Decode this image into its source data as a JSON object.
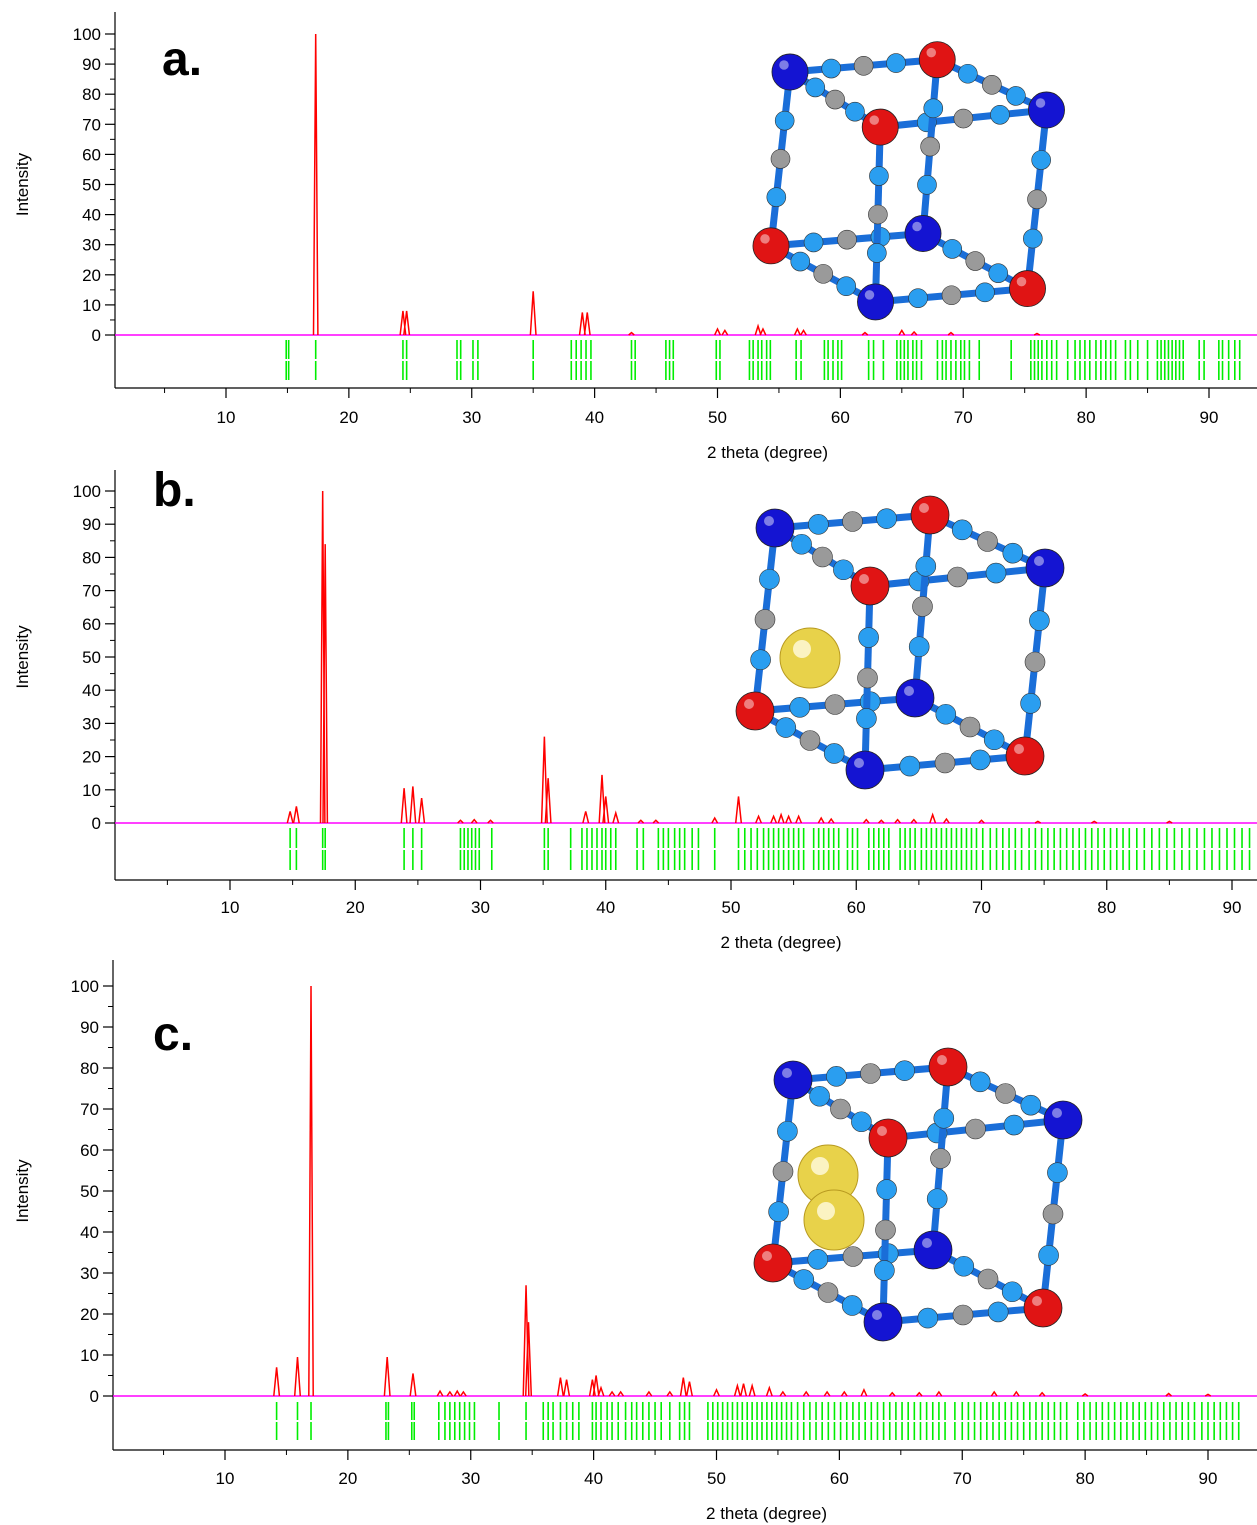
{
  "colors": {
    "pattern": "#ff0000",
    "baseline": "#ff00ff",
    "reflection_ticks": "#00ee00",
    "axis": "#000000",
    "atom_metal_a": "#1414d2",
    "atom_metal_b": "#e01414",
    "atom_n": "#2a9ef0",
    "atom_c": "#9a9a9a",
    "guest": "#e8d24a"
  },
  "chart_data": [
    {
      "type": "line",
      "label": "a.",
      "xlabel": "2 theta (degree)",
      "ylabel": "Intensity",
      "xlim": [
        1,
        93
      ],
      "ylim": [
        0,
        100
      ],
      "xticks": [
        10,
        20,
        30,
        40,
        50,
        60,
        70,
        80,
        90
      ],
      "yticks": [
        0,
        10,
        20,
        30,
        40,
        50,
        60,
        70,
        80,
        90,
        100
      ],
      "peaks": [
        [
          17.3,
          100
        ],
        [
          24.4,
          8
        ],
        [
          24.7,
          8
        ],
        [
          35.0,
          14.5
        ],
        [
          39.0,
          7.5
        ],
        [
          39.4,
          7.5
        ],
        [
          43.0,
          0.8
        ],
        [
          50.0,
          2
        ],
        [
          50.6,
          1.5
        ],
        [
          53.3,
          3
        ],
        [
          53.7,
          2
        ],
        [
          56.5,
          2
        ],
        [
          57.0,
          1.5
        ],
        [
          62.0,
          0.8
        ],
        [
          65.0,
          1.5
        ],
        [
          66.0,
          1
        ],
        [
          69.0,
          0.8
        ],
        [
          76.0,
          0.5
        ]
      ],
      "reflections": [
        14.9,
        15.1,
        17.3,
        24.4,
        24.7,
        28.8,
        29.1,
        30.1,
        30.5,
        35.0,
        38.1,
        38.5,
        38.9,
        39.3,
        39.7,
        43.0,
        43.3,
        45.8,
        46.1,
        46.4,
        49.9,
        50.2,
        52.6,
        52.9,
        53.3,
        53.6,
        54.0,
        54.3,
        56.4,
        56.8,
        58.7,
        59.0,
        59.4,
        59.8,
        60.1,
        62.3,
        62.7,
        63.5,
        64.6,
        64.9,
        65.2,
        65.5,
        65.9,
        66.2,
        66.6,
        67.9,
        68.3,
        68.6,
        69.0,
        69.4,
        69.8,
        70.1,
        70.5,
        71.3,
        73.9,
        75.5,
        75.8,
        76.1,
        76.4,
        76.8,
        77.2,
        77.6,
        78.5,
        79.1,
        79.5,
        79.9,
        80.3,
        80.8,
        81.2,
        81.6,
        82.0,
        82.4,
        83.2,
        83.6,
        84.2,
        85.0,
        85.8,
        86.1,
        86.4,
        86.7,
        87.0,
        87.3,
        87.6,
        87.9,
        89.2,
        89.6,
        90.8,
        91.1,
        91.6,
        92.1,
        92.5
      ]
    },
    {
      "type": "line",
      "label": "b.",
      "xlabel": "2 theta (degree)",
      "ylabel": "Intensity",
      "xlim": [
        1,
        93
      ],
      "ylim": [
        0,
        100
      ],
      "xticks": [
        10,
        20,
        30,
        40,
        50,
        60,
        70,
        80,
        90
      ],
      "yticks": [
        0,
        10,
        20,
        30,
        40,
        50,
        60,
        70,
        80,
        90,
        100
      ],
      "peaks": [
        [
          14.8,
          3.5
        ],
        [
          15.3,
          5
        ],
        [
          17.4,
          100
        ],
        [
          17.6,
          84
        ],
        [
          23.9,
          10.5
        ],
        [
          24.6,
          11
        ],
        [
          25.3,
          7.5
        ],
        [
          28.4,
          0.8
        ],
        [
          29.5,
          1
        ],
        [
          30.8,
          0.8
        ],
        [
          35.1,
          26
        ],
        [
          35.4,
          13.5
        ],
        [
          38.4,
          3.5
        ],
        [
          39.7,
          14.5
        ],
        [
          40.0,
          8
        ],
        [
          40.8,
          3
        ],
        [
          42.8,
          0.8
        ],
        [
          44.0,
          0.8
        ],
        [
          48.7,
          1.5
        ],
        [
          50.6,
          8
        ],
        [
          52.2,
          2
        ],
        [
          53.4,
          2
        ],
        [
          54.0,
          2.5
        ],
        [
          54.6,
          2
        ],
        [
          55.4,
          2
        ],
        [
          57.2,
          1.5
        ],
        [
          58.0,
          1.2
        ],
        [
          60.8,
          1
        ],
        [
          62.0,
          0.8
        ],
        [
          63.3,
          1
        ],
        [
          64.6,
          1
        ],
        [
          66.1,
          2.5
        ],
        [
          67.2,
          1.2
        ],
        [
          70.0,
          0.8
        ],
        [
          74.5,
          0.5
        ],
        [
          79.0,
          0.5
        ],
        [
          85.0,
          0.5
        ]
      ],
      "reflections": [
        14.8,
        15.3,
        17.4,
        17.6,
        23.9,
        24.6,
        25.3,
        28.4,
        28.7,
        29.0,
        29.3,
        29.6,
        29.9,
        30.9,
        35.1,
        35.4,
        37.2,
        38.1,
        38.5,
        38.9,
        39.3,
        39.7,
        40.0,
        40.4,
        40.8,
        42.5,
        43.0,
        44.2,
        44.6,
        45.0,
        45.5,
        45.9,
        46.3,
        46.9,
        47.4,
        48.7,
        50.6,
        51.1,
        51.6,
        52.1,
        52.6,
        53.0,
        53.4,
        53.8,
        54.2,
        54.6,
        55.0,
        55.4,
        55.8,
        56.6,
        57.0,
        57.4,
        57.8,
        58.2,
        58.6,
        59.3,
        59.7,
        60.1,
        61.0,
        61.4,
        61.8,
        62.2,
        62.6,
        63.5,
        63.9,
        64.3,
        64.7,
        65.2,
        65.6,
        66.0,
        66.4,
        66.8,
        67.2,
        67.6,
        68.0,
        68.4,
        68.8,
        69.2,
        69.6,
        70.1,
        70.7,
        71.2,
        71.7,
        72.2,
        72.7,
        73.2,
        73.8,
        74.3,
        74.8,
        75.3,
        75.8,
        76.3,
        76.8,
        77.3,
        77.8,
        78.3,
        78.8,
        79.3,
        79.8,
        80.3,
        80.8,
        81.3,
        81.8,
        82.4,
        83.0,
        83.6,
        84.2,
        84.8,
        85.4,
        86.0,
        86.6,
        87.2,
        87.8,
        88.4,
        89.0,
        89.6,
        90.2,
        90.8,
        91.4,
        92.0,
        92.6
      ]
    },
    {
      "type": "line",
      "label": "c.",
      "xlabel": "2 theta (degree)",
      "ylabel": "Intensity",
      "xlim": [
        1,
        93
      ],
      "ylim": [
        0,
        100
      ],
      "xticks": [
        10,
        20,
        30,
        40,
        50,
        60,
        70,
        80,
        90
      ],
      "yticks": [
        0,
        10,
        20,
        30,
        40,
        50,
        60,
        70,
        80,
        90,
        100
      ],
      "peaks": [
        [
          14.2,
          7
        ],
        [
          15.9,
          9.5
        ],
        [
          17.0,
          100
        ],
        [
          23.2,
          9.5
        ],
        [
          25.3,
          5.5
        ],
        [
          27.5,
          1.2
        ],
        [
          28.3,
          1
        ],
        [
          28.9,
          1.2
        ],
        [
          29.4,
          1
        ],
        [
          34.5,
          27
        ],
        [
          34.7,
          18
        ],
        [
          37.3,
          4.5
        ],
        [
          37.8,
          4
        ],
        [
          39.9,
          4
        ],
        [
          40.2,
          5
        ],
        [
          40.6,
          2
        ],
        [
          41.5,
          1
        ],
        [
          42.2,
          1
        ],
        [
          44.5,
          1
        ],
        [
          46.2,
          1
        ],
        [
          47.3,
          4.5
        ],
        [
          47.8,
          3.5
        ],
        [
          50.0,
          1.5
        ],
        [
          51.7,
          2.5
        ],
        [
          52.2,
          3
        ],
        [
          52.9,
          2.5
        ],
        [
          54.3,
          2
        ],
        [
          55.4,
          1
        ],
        [
          57.3,
          1
        ],
        [
          59.0,
          1
        ],
        [
          60.4,
          1
        ],
        [
          62.0,
          1.5
        ],
        [
          64.3,
          0.8
        ],
        [
          66.5,
          0.8
        ],
        [
          68.1,
          1
        ],
        [
          72.6,
          1
        ],
        [
          74.4,
          1
        ],
        [
          76.5,
          0.8
        ],
        [
          80.0,
          0.5
        ],
        [
          86.8,
          0.6
        ],
        [
          90.0,
          0.4
        ]
      ],
      "reflections": [
        14.2,
        15.9,
        17.0,
        23.1,
        23.3,
        25.2,
        25.4,
        27.4,
        27.9,
        28.3,
        28.7,
        29.1,
        29.5,
        29.9,
        30.3,
        32.3,
        34.5,
        35.9,
        36.3,
        36.7,
        37.3,
        37.8,
        38.3,
        38.8,
        39.9,
        40.2,
        40.6,
        41.1,
        41.5,
        42.0,
        42.6,
        43.1,
        43.5,
        44.0,
        44.5,
        45.0,
        45.5,
        46.2,
        47.0,
        47.4,
        47.8,
        49.3,
        49.7,
        50.1,
        50.5,
        50.9,
        51.3,
        51.7,
        52.1,
        52.5,
        52.9,
        53.3,
        53.7,
        54.1,
        54.5,
        54.9,
        55.3,
        55.7,
        56.1,
        56.6,
        57.1,
        57.6,
        58.1,
        58.6,
        59.1,
        59.6,
        60.1,
        60.6,
        61.1,
        61.6,
        62.1,
        62.6,
        63.1,
        63.6,
        64.1,
        64.6,
        65.1,
        65.6,
        66.1,
        66.6,
        67.1,
        67.6,
        68.1,
        68.6,
        69.4,
        70.0,
        70.5,
        71.0,
        71.5,
        72.0,
        72.5,
        73.0,
        73.5,
        74.0,
        74.5,
        75.0,
        75.5,
        76.0,
        76.5,
        77.0,
        77.5,
        78.0,
        78.5,
        79.4,
        79.9,
        80.4,
        80.9,
        81.4,
        81.9,
        82.4,
        82.9,
        83.4,
        83.9,
        84.4,
        84.9,
        85.4,
        85.9,
        86.4,
        86.9,
        87.4,
        87.9,
        88.4,
        88.9,
        89.5,
        90.0,
        90.5,
        91.0,
        91.5,
        92.0,
        92.5
      ]
    }
  ],
  "structures": [
    {
      "guests": 0
    },
    {
      "guests": 1
    },
    {
      "guests": 2
    }
  ]
}
